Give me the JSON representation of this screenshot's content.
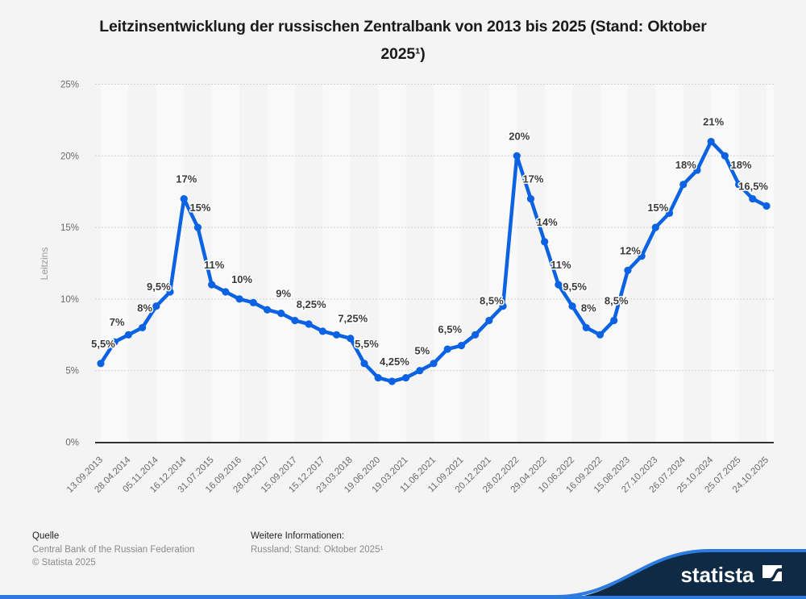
{
  "header": {
    "title_lines": [
      "Leitzinsentwicklung der russischen Zentralbank von 2013 bis 2025 (Stand: Oktober",
      "2025¹)"
    ]
  },
  "chart_data": {
    "type": "line",
    "title": "Leitzinsentwicklung der russischen Zentralbank von 2013 bis 2025 (Stand: Oktober 2025¹)",
    "xlabel": "",
    "ylabel": "Leitzins",
    "ylim": [
      0,
      25
    ],
    "ytick_values": [
      0,
      5,
      10,
      15,
      20,
      25
    ],
    "ytick_labels": [
      "0%",
      "5%",
      "10%",
      "15%",
      "20%",
      "25%"
    ],
    "grid": true,
    "legend": "none",
    "categories": [
      "13.09.2013",
      "",
      "28.04.2014",
      "",
      "05.11.2014",
      "",
      "16.12.2014",
      "",
      "31.07.2015",
      "",
      "16.09.2016",
      "",
      "28.04.2017",
      "",
      "15.09.2017",
      "",
      "15.12.2017",
      "",
      "23.03.2018",
      "",
      "19.06.2020",
      "",
      "19.03.2021",
      "",
      "11.06.2021",
      "",
      "11.09.2021",
      "",
      "20.12.2021",
      "",
      "28.02.2022",
      "",
      "29.04.2022",
      "",
      "10.06.2022",
      "",
      "16.09.2022",
      "",
      "15.08.2023",
      "",
      "27.10.2023",
      "",
      "26.07.2024",
      "",
      "25.10.2024",
      "",
      "25.07.2025",
      "",
      "24.10.2025"
    ],
    "series": [
      {
        "name": "Leitzins",
        "color": "#0b63e3",
        "values": [
          5.5,
          7,
          7.5,
          8,
          9.5,
          10.5,
          17,
          15,
          11,
          10.5,
          10,
          9.75,
          9.25,
          9,
          8.5,
          8.25,
          7.75,
          7.5,
          7.25,
          5.5,
          4.5,
          4.25,
          4.5,
          5,
          5.5,
          6.5,
          6.75,
          7.5,
          8.5,
          9.5,
          20,
          17,
          14,
          11,
          9.5,
          8,
          7.5,
          8.5,
          12,
          13,
          15,
          16,
          18,
          19,
          21,
          20,
          18,
          17,
          16.5
        ]
      }
    ],
    "data_labels": [
      {
        "index": 0,
        "text": "5,5%"
      },
      {
        "index": 1,
        "text": "7%"
      },
      {
        "index": 3,
        "text": "8%"
      },
      {
        "index": 4,
        "text": "9,5%"
      },
      {
        "index": 6,
        "text": "17%"
      },
      {
        "index": 7,
        "text": "15%"
      },
      {
        "index": 8,
        "text": "11%"
      },
      {
        "index": 10,
        "text": "10%"
      },
      {
        "index": 13,
        "text": "9%"
      },
      {
        "index": 15,
        "text": "8,25%"
      },
      {
        "index": 18,
        "text": "7,25%"
      },
      {
        "index": 19,
        "text": "5,5%"
      },
      {
        "index": 21,
        "text": "4,25%"
      },
      {
        "index": 23,
        "text": "5%"
      },
      {
        "index": 25,
        "text": "6,5%"
      },
      {
        "index": 28,
        "text": "8,5%"
      },
      {
        "index": 30,
        "text": "20%"
      },
      {
        "index": 31,
        "text": "17%"
      },
      {
        "index": 32,
        "text": "14%"
      },
      {
        "index": 33,
        "text": "11%"
      },
      {
        "index": 34,
        "text": "9,5%"
      },
      {
        "index": 35,
        "text": "8%"
      },
      {
        "index": 37,
        "text": "8,5%"
      },
      {
        "index": 38,
        "text": "12%"
      },
      {
        "index": 40,
        "text": "15%"
      },
      {
        "index": 42,
        "text": "18%"
      },
      {
        "index": 44,
        "text": "21%"
      },
      {
        "index": 46,
        "text": "18%"
      },
      {
        "index": 48,
        "text": "16,5%"
      }
    ]
  },
  "footer": {
    "source_heading": "Quelle",
    "source_text": "Central Bank of the Russian Federation",
    "copyright": "© Statista 2025",
    "info_heading": "Weitere Informationen:",
    "info_text": "Russland; Stand: Oktober 2025¹"
  },
  "brand": {
    "name": "statista",
    "navy": "#0f2a45",
    "accent": "#2b7be0"
  }
}
